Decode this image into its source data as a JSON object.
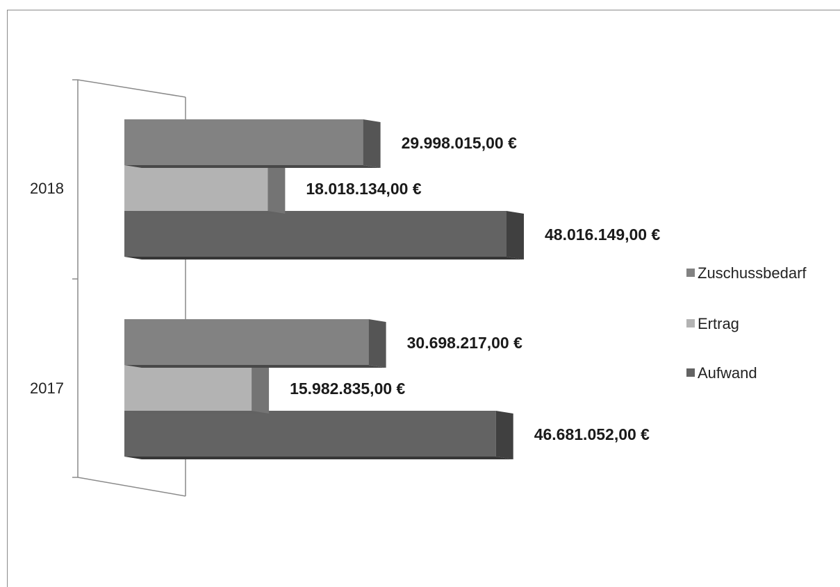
{
  "chart_data": {
    "type": "bar",
    "orientation": "horizontal",
    "three_d": true,
    "categories": [
      "2018",
      "2017"
    ],
    "series": [
      {
        "name": "Zuschussbedarf",
        "color": "#828282",
        "values": [
          29998015.0,
          30698217.0
        ],
        "labels": [
          "29.998.015,00 €",
          "30.698.217,00 €"
        ]
      },
      {
        "name": "Ertrag",
        "color": "#b3b3b3",
        "values": [
          18018134.0,
          15982835.0
        ],
        "labels": [
          "18.018.134,00 €",
          "15.982.835,00 €"
        ]
      },
      {
        "name": "Aufwand",
        "color": "#636363",
        "values": [
          48016149.0,
          46681052.0
        ],
        "labels": [
          "48.016.149,00 €",
          "46.681.052,00 €"
        ]
      }
    ],
    "xlim": [
      0,
      48016149.0
    ],
    "grid": false,
    "legend_position": "right"
  }
}
